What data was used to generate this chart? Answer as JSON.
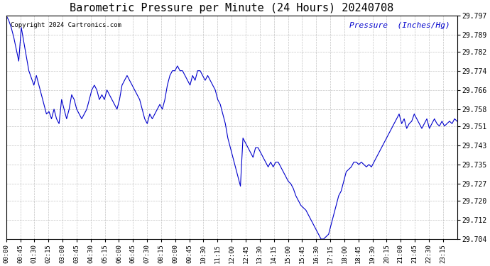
{
  "title": "Barometric Pressure per Minute (24 Hours) 20240708",
  "ylabel": "Pressure  (Inches/Hg)",
  "copyright_text": "Copyright 2024 Cartronics.com",
  "line_color": "#0000CC",
  "background_color": "#ffffff",
  "grid_color": "#aaaaaa",
  "ylim": [
    29.704,
    29.797
  ],
  "yticks": [
    29.704,
    29.712,
    29.72,
    29.727,
    29.735,
    29.743,
    29.751,
    29.758,
    29.766,
    29.774,
    29.782,
    29.789,
    29.797
  ],
  "xtick_labels": [
    "00:00",
    "00:45",
    "01:30",
    "02:15",
    "03:00",
    "03:45",
    "04:30",
    "05:15",
    "06:00",
    "06:45",
    "07:30",
    "08:15",
    "09:00",
    "09:45",
    "10:30",
    "11:15",
    "12:00",
    "12:45",
    "13:30",
    "14:15",
    "15:00",
    "15:45",
    "16:30",
    "17:15",
    "18:00",
    "18:45",
    "19:30",
    "20:15",
    "21:00",
    "21:45",
    "22:30",
    "23:15"
  ],
  "pressure_data": [
    29.797,
    29.795,
    29.792,
    29.788,
    29.783,
    29.778,
    29.792,
    29.786,
    29.78,
    29.774,
    29.771,
    29.768,
    29.772,
    29.768,
    29.764,
    29.76,
    29.756,
    29.757,
    29.754,
    29.758,
    29.754,
    29.752,
    29.762,
    29.758,
    29.754,
    29.758,
    29.764,
    29.762,
    29.758,
    29.756,
    29.754,
    29.756,
    29.758,
    29.762,
    29.766,
    29.768,
    29.766,
    29.762,
    29.764,
    29.762,
    29.766,
    29.764,
    29.762,
    29.76,
    29.758,
    29.762,
    29.768,
    29.77,
    29.772,
    29.77,
    29.768,
    29.766,
    29.764,
    29.762,
    29.758,
    29.754,
    29.752,
    29.756,
    29.754,
    29.756,
    29.758,
    29.76,
    29.758,
    29.762,
    29.768,
    29.772,
    29.774,
    29.774,
    29.776,
    29.774,
    29.774,
    29.772,
    29.77,
    29.768,
    29.772,
    29.77,
    29.774,
    29.774,
    29.772,
    29.77,
    29.772,
    29.77,
    29.768,
    29.766,
    29.762,
    29.76,
    29.756,
    29.752,
    29.746,
    29.742,
    29.738,
    29.734,
    29.73,
    29.726,
    29.746,
    29.744,
    29.742,
    29.74,
    29.738,
    29.742,
    29.742,
    29.74,
    29.738,
    29.736,
    29.734,
    29.736,
    29.734,
    29.736,
    29.736,
    29.734,
    29.732,
    29.73,
    29.728,
    29.727,
    29.725,
    29.722,
    29.72,
    29.718,
    29.717,
    29.716,
    29.714,
    29.712,
    29.71,
    29.708,
    29.706,
    29.704,
    29.704,
    29.705,
    29.706,
    29.71,
    29.714,
    29.718,
    29.722,
    29.724,
    29.728,
    29.732,
    29.733,
    29.734,
    29.736,
    29.736,
    29.735,
    29.736,
    29.735,
    29.734,
    29.735,
    29.734,
    29.736,
    29.738,
    29.74,
    29.742,
    29.744,
    29.746,
    29.748,
    29.75,
    29.752,
    29.754,
    29.756,
    29.752,
    29.754,
    29.75,
    29.752,
    29.753,
    29.756,
    29.754,
    29.752,
    29.75,
    29.752,
    29.754,
    29.75,
    29.752,
    29.754,
    29.752,
    29.751,
    29.753,
    29.751,
    29.752,
    29.753,
    29.752,
    29.754,
    29.753
  ]
}
